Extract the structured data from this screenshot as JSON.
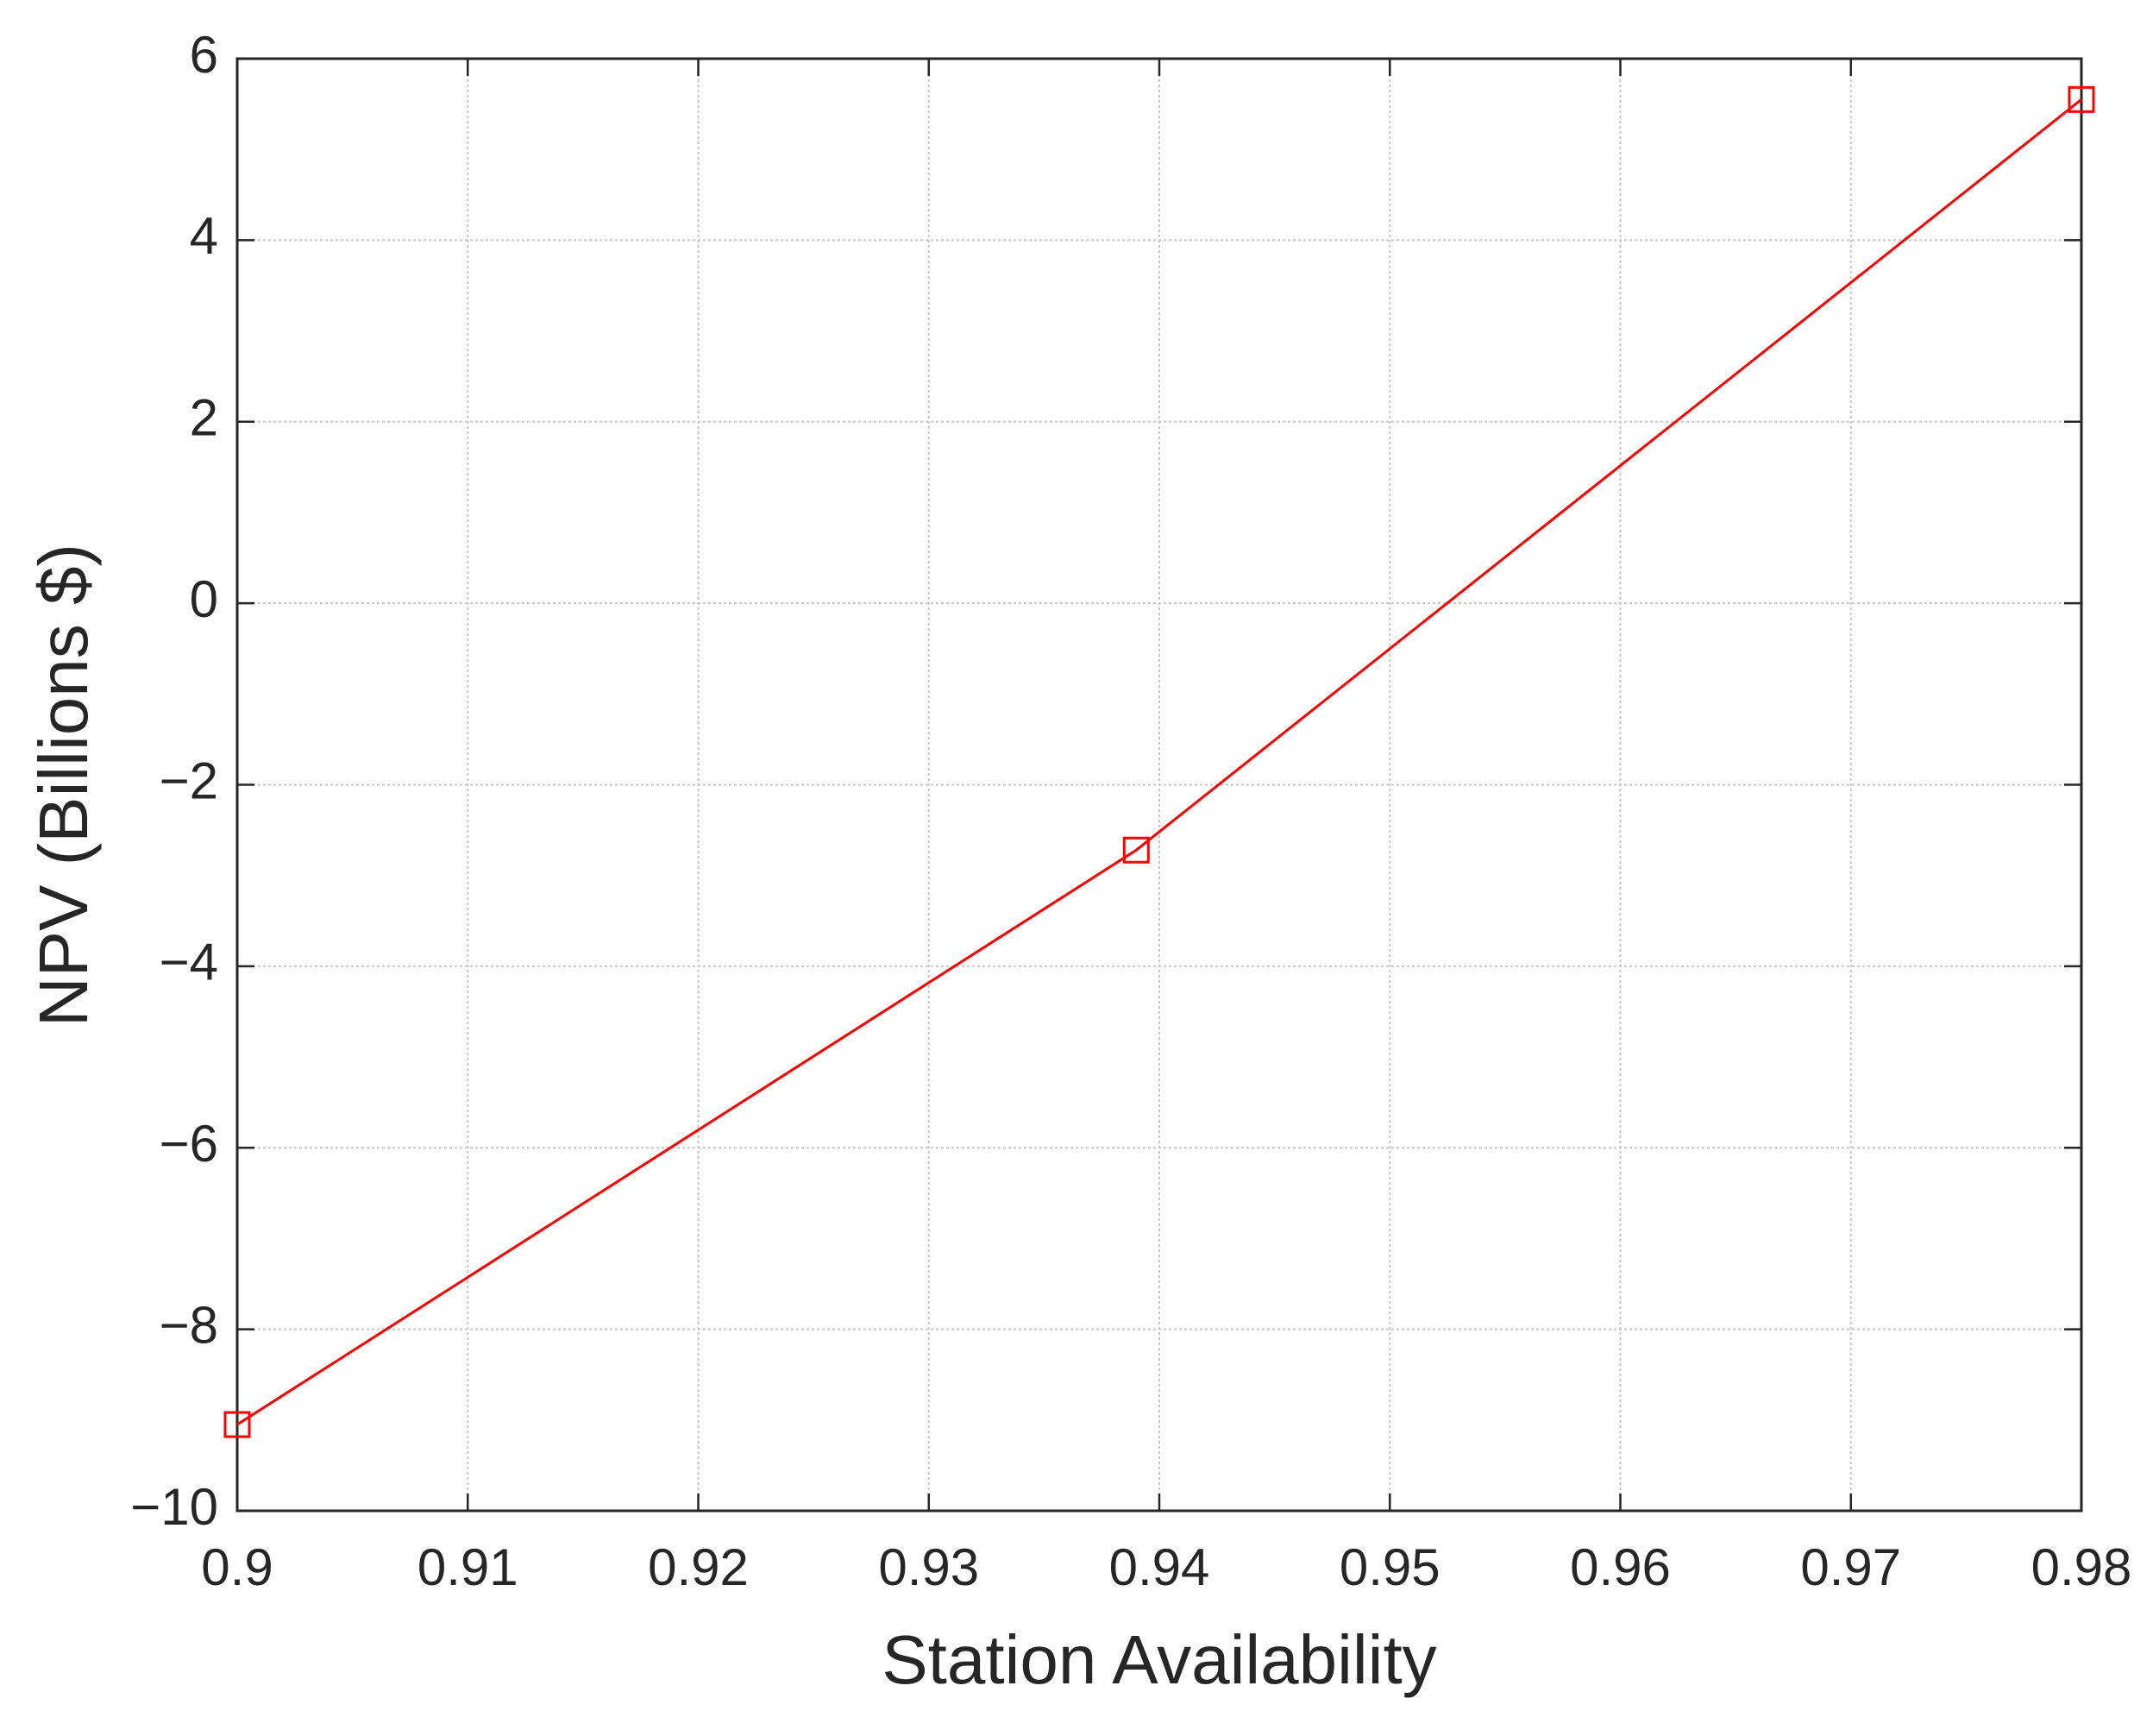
{
  "chart_data": {
    "type": "line",
    "x_label": "Station Availability",
    "y_label": "NPV (Billions $)",
    "series": [
      {
        "color": "#ff0000",
        "marker": "square",
        "x": [
          0.9,
          0.939,
          0.98
        ],
        "values": [
          -9.05,
          -2.72,
          5.55
        ]
      }
    ],
    "xlim": [
      0.9,
      0.98
    ],
    "xticks": [
      0.9,
      0.91,
      0.92,
      0.93,
      0.94,
      0.95,
      0.96,
      0.97,
      0.98
    ],
    "ylim": [
      -10,
      6
    ],
    "yticks": [
      {
        "value": -10,
        "label": "−10"
      },
      {
        "value": -8,
        "label": "−8"
      },
      {
        "value": -6,
        "label": "−6"
      },
      {
        "value": -4,
        "label": "−4"
      },
      {
        "value": -2,
        "label": "−2"
      },
      0,
      2,
      4,
      6
    ],
    "grid": true
  }
}
